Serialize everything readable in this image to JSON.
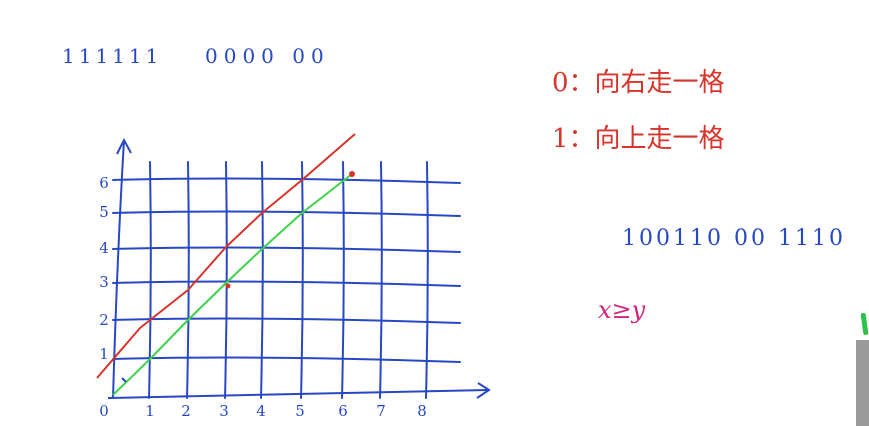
{
  "top_sequence": {
    "ones": "111111",
    "zeros": "0000 00"
  },
  "legend": [
    {
      "text": "0：向右走一格"
    },
    {
      "text": "1：向上走一格"
    }
  ],
  "right_sequence": "100110 00 1110",
  "condition": "x≥y",
  "grid": {
    "x_ticks": [
      "0",
      "1",
      "2",
      "3",
      "4",
      "5",
      "6",
      "7",
      "8"
    ],
    "y_ticks": [
      "1",
      "2",
      "3",
      "4",
      "5",
      "6"
    ]
  },
  "colors": {
    "ink": "#2748c4",
    "red_path": "#d6352c",
    "green_path": "#3ed24a",
    "accent": "#d3247a"
  }
}
